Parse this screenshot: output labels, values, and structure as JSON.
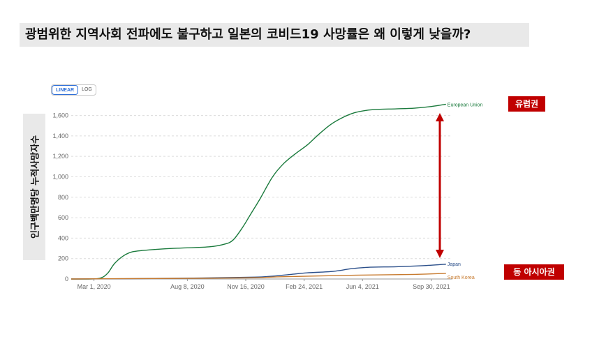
{
  "title": "광범위한 지역사회 전파에도 불구하고 일본의 코비드19 사망률은 왜 이렇게 낮을까?",
  "toggle": {
    "linear": "LINEAR",
    "log": "LOG",
    "selected": "LINEAR"
  },
  "ylabel": "인구백만명당  누적사망자수",
  "annotations": {
    "europe": "유럽권",
    "east_asia": "동 아시아권"
  },
  "colors": {
    "eu": "#1a7a3c",
    "japan": "#2b4f8a",
    "korea": "#c77a2e",
    "arrow": "#c00000",
    "badge": "#c00000"
  },
  "chart_data": {
    "type": "line",
    "ylim": [
      0,
      1720
    ],
    "xlim": [
      "2020-01-22",
      "2021-11-05"
    ],
    "y_ticks": [
      "0",
      "200",
      "400",
      "600",
      "800",
      "1,000",
      "1,200",
      "1,400",
      "1,600"
    ],
    "x_ticks": [
      "Mar 1, 2020",
      "Aug 8, 2020",
      "Nov 16, 2020",
      "Feb 24, 2021",
      "Jun 4, 2021",
      "Sep 30, 2021"
    ],
    "grid": true,
    "series": [
      {
        "name": "European Union",
        "x": [
          "2020-01-22",
          "2020-03-01",
          "2020-03-15",
          "2020-03-25",
          "2020-04-05",
          "2020-04-20",
          "2020-05-05",
          "2020-05-25",
          "2020-06-15",
          "2020-07-15",
          "2020-08-08",
          "2020-09-15",
          "2020-10-10",
          "2020-10-25",
          "2020-11-10",
          "2020-11-25",
          "2020-12-10",
          "2021-01-01",
          "2021-01-20",
          "2021-02-10",
          "2021-03-01",
          "2021-03-20",
          "2021-04-10",
          "2021-05-01",
          "2021-05-20",
          "2021-06-10",
          "2021-07-01",
          "2021-08-01",
          "2021-09-01",
          "2021-09-30",
          "2021-10-25"
        ],
        "y": [
          0,
          1,
          15,
          60,
          150,
          225,
          265,
          280,
          290,
          300,
          305,
          315,
          340,
          380,
          500,
          640,
          780,
          1000,
          1130,
          1230,
          1310,
          1410,
          1510,
          1580,
          1625,
          1650,
          1660,
          1665,
          1672,
          1688,
          1710
        ]
      },
      {
        "name": "Japan",
        "x": [
          "2020-01-22",
          "2020-05-01",
          "2020-09-01",
          "2020-12-01",
          "2021-01-01",
          "2021-02-01",
          "2021-03-01",
          "2021-04-15",
          "2021-05-15",
          "2021-06-15",
          "2021-08-01",
          "2021-09-15",
          "2021-10-25"
        ],
        "y": [
          0,
          3,
          10,
          18,
          28,
          45,
          60,
          75,
          100,
          115,
          120,
          130,
          145
        ]
      },
      {
        "name": "South Korea",
        "x": [
          "2020-01-22",
          "2020-04-01",
          "2020-09-01",
          "2020-12-01",
          "2021-01-15",
          "2021-06-01",
          "2021-09-01",
          "2021-10-25"
        ],
        "y": [
          0,
          3,
          7,
          12,
          22,
          38,
          45,
          55
        ]
      }
    ]
  }
}
